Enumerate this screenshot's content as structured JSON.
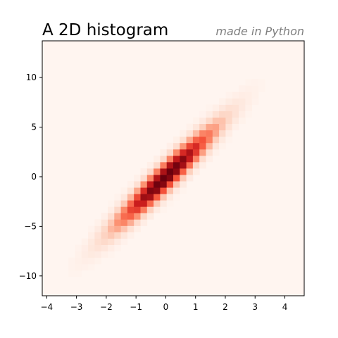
{
  "chart_data": {
    "type": "heatmap",
    "title": "A 2D histogram",
    "subtitle": "made in Python",
    "colormap": [
      "#fff5f0",
      "#fdd3c1",
      "#fc9070",
      "#f6553c",
      "#cd1e1e",
      "#8d0911",
      "#67000d"
    ],
    "xlim": [
      -4.15,
      4.65
    ],
    "ylim": [
      -12.0,
      13.7
    ],
    "xticks": [
      -4,
      -3,
      -2,
      -1,
      0,
      1,
      2,
      3,
      4
    ],
    "xtick_labels": [
      "−4",
      "−3",
      "−2",
      "−1",
      "0",
      "1",
      "2",
      "3",
      "4"
    ],
    "yticks": [
      -10,
      -5,
      0,
      5,
      10
    ],
    "ytick_labels": [
      "−10",
      "−5",
      "0",
      "5",
      "10"
    ],
    "distribution": {
      "x_mean": 0.0,
      "x_std": 1.0,
      "y_mean": 0.0,
      "y_std": 3.0,
      "correlation": 0.95
    },
    "bins": {
      "x": 40,
      "y": 40
    }
  }
}
